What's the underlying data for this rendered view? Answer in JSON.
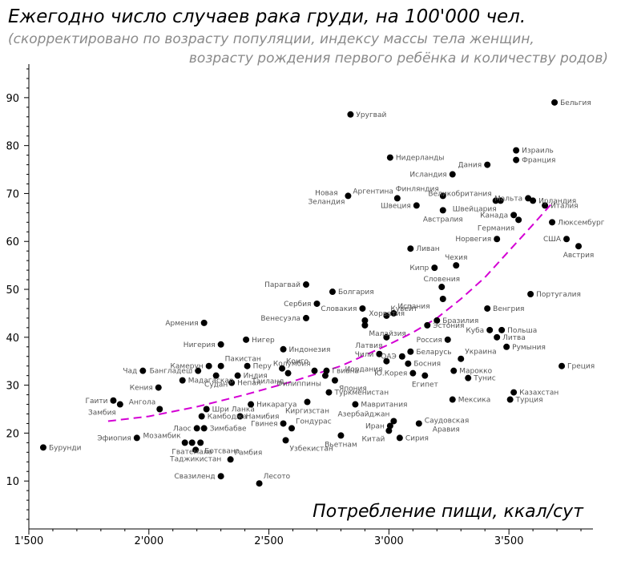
{
  "chart_data": {
    "type": "scatter",
    "title": "Ежегодно число случаев рака груди, на 100'000 чел.",
    "subtitle_line1": "(скорректировано по возрасту популяции, индексу массы тела женщин,",
    "subtitle_line2": "возрасту рождения первого ребёнка и количеству родов)",
    "xlabel": "Потребление пищи, ккал/сут",
    "ylabel": "",
    "xlim": [
      1500,
      3850
    ],
    "ylim": [
      0,
      97
    ],
    "x_ticks": [
      1500,
      2000,
      2500,
      3000,
      3500
    ],
    "x_tick_labels": [
      "1'500",
      "2'000",
      "2'500",
      "3'000",
      "3'500"
    ],
    "y_ticks": [
      10,
      20,
      30,
      40,
      50,
      60,
      70,
      80,
      90
    ],
    "y_tick_labels": [
      "10",
      "20",
      "30",
      "40",
      "50",
      "60",
      "70",
      "80",
      "90"
    ],
    "grid": false,
    "colors": {
      "points": "#000000",
      "labels": "#555555",
      "trend": "#d400d4"
    },
    "trend_line": {
      "style": "dashed",
      "x": [
        1830,
        2000,
        2200,
        2400,
        2600,
        2800,
        3000,
        3100,
        3200,
        3300,
        3400,
        3500,
        3600,
        3680
      ],
      "y": [
        22.5,
        23.5,
        25.5,
        28.0,
        30.8,
        34.0,
        38.5,
        41.0,
        44.0,
        48.0,
        52.5,
        58.0,
        63.5,
        68.0
      ]
    },
    "points": [
      {
        "x": 1560,
        "y": 17.0,
        "label": "Бурунди",
        "anchor": "right"
      },
      {
        "x": 1950,
        "y": 19.0,
        "label": "Эфиопия",
        "anchor": "left"
      },
      {
        "x": 1852,
        "y": 26.8,
        "label": "Гаити",
        "anchor": "left"
      },
      {
        "x": 1880,
        "y": 26.0,
        "label": "Замбия",
        "anchor": "below-left"
      },
      {
        "x": 1975,
        "y": 33.0,
        "label": "Чад",
        "anchor": "left"
      },
      {
        "x": 2040,
        "y": 29.5,
        "label": "Кения",
        "anchor": "left"
      },
      {
        "x": 2045,
        "y": 25.0,
        "label": "Ангола",
        "anchor": "above-left"
      },
      {
        "x": 2140,
        "y": 31.0,
        "label": "Мадагаскар",
        "anchor": "right"
      },
      {
        "x": 2205,
        "y": 33.0,
        "label": "Бангладеш",
        "anchor": "left"
      },
      {
        "x": 2250,
        "y": 34.0,
        "label": "Камерун",
        "anchor": "left"
      },
      {
        "x": 2300,
        "y": 34.0,
        "label": "Пакистан",
        "anchor": "above-right"
      },
      {
        "x": 2280,
        "y": 32.0,
        "label": "Судан",
        "anchor": "below"
      },
      {
        "x": 2345,
        "y": 30.5,
        "label": "Непал",
        "anchor": "right"
      },
      {
        "x": 2370,
        "y": 32.0,
        "label": "Индия",
        "anchor": "right"
      },
      {
        "x": 2410,
        "y": 34.0,
        "label": "Перу",
        "anchor": "right"
      },
      {
        "x": 2230,
        "y": 43.0,
        "label": "Армения",
        "anchor": "left"
      },
      {
        "x": 2300,
        "y": 38.5,
        "label": "Нигерия",
        "anchor": "left"
      },
      {
        "x": 2405,
        "y": 39.5,
        "label": "Нигер",
        "anchor": "right"
      },
      {
        "x": 2240,
        "y": 25.0,
        "label": "Шри Ланка",
        "anchor": "right"
      },
      {
        "x": 2220,
        "y": 23.5,
        "label": "Камбоджа",
        "anchor": "right"
      },
      {
        "x": 2200,
        "y": 21.0,
        "label": "Лаос",
        "anchor": "left"
      },
      {
        "x": 2230,
        "y": 21.0,
        "label": "Зимбабве",
        "anchor": "right"
      },
      {
        "x": 2150,
        "y": 18.0,
        "label": "Мозамбик",
        "anchor": "above-left"
      },
      {
        "x": 2180,
        "y": 18.0,
        "label": "Гватемала",
        "anchor": "below"
      },
      {
        "x": 2215,
        "y": 18.0,
        "label": "Ботсвана",
        "anchor": "below-right"
      },
      {
        "x": 2195,
        "y": 16.5,
        "label": "Таджикистан",
        "anchor": "below"
      },
      {
        "x": 2300,
        "y": 11.0,
        "label": "Свазиленд",
        "anchor": "left"
      },
      {
        "x": 2340,
        "y": 14.5,
        "label": "Гамбия",
        "anchor": "above-right"
      },
      {
        "x": 2460,
        "y": 9.5,
        "label": "Лесото",
        "anchor": "above-right"
      },
      {
        "x": 2380,
        "y": 23.5,
        "label": "Намибия",
        "anchor": "right"
      },
      {
        "x": 2425,
        "y": 26.0,
        "label": "Никарагуа",
        "anchor": "right"
      },
      {
        "x": 2560,
        "y": 22.0,
        "label": "Гвинея",
        "anchor": "left"
      },
      {
        "x": 2595,
        "y": 21.0,
        "label": "Гондурас",
        "anchor": "above-right"
      },
      {
        "x": 2570,
        "y": 18.5,
        "label": "Узбекистан",
        "anchor": "below-right"
      },
      {
        "x": 2560,
        "y": 37.5,
        "label": "Индонезия",
        "anchor": "right"
      },
      {
        "x": 2555,
        "y": 33.5,
        "label": "Конго",
        "anchor": "above-right"
      },
      {
        "x": 2580,
        "y": 32.5,
        "label": "Таиланд",
        "anchor": "below-left"
      },
      {
        "x": 2690,
        "y": 33.0,
        "label": "Колумбия",
        "anchor": "above-left"
      },
      {
        "x": 2740,
        "y": 33.0,
        "label": "Гвиана",
        "anchor": "right"
      },
      {
        "x": 2735,
        "y": 32.0,
        "label": "Филиппины",
        "anchor": "below-left"
      },
      {
        "x": 2775,
        "y": 31.0,
        "label": "Япония",
        "anchor": "below-right"
      },
      {
        "x": 2750,
        "y": 28.5,
        "label": "Туркменистан",
        "anchor": "right"
      },
      {
        "x": 2860,
        "y": 26.0,
        "label": "Мавритания",
        "anchor": "right"
      },
      {
        "x": 2660,
        "y": 26.5,
        "label": "Киргизстан",
        "anchor": "below"
      },
      {
        "x": 2800,
        "y": 19.5,
        "label": "Вьетнам",
        "anchor": "below"
      },
      {
        "x": 2655,
        "y": 51.0,
        "label": "Парагвай",
        "anchor": "left"
      },
      {
        "x": 2700,
        "y": 47.0,
        "label": "Сербия",
        "anchor": "left"
      },
      {
        "x": 2765,
        "y": 49.5,
        "label": "Болгария",
        "anchor": "right"
      },
      {
        "x": 2655,
        "y": 44.0,
        "label": "Венесуэла",
        "anchor": "left"
      },
      {
        "x": 2890,
        "y": 46.0,
        "label": "Словакия",
        "anchor": "left"
      },
      {
        "x": 2900,
        "y": 43.5,
        "label": "Хорватия",
        "anchor": "above-right"
      },
      {
        "x": 2900,
        "y": 42.5,
        "label": "Малайзия",
        "anchor": "below-right"
      },
      {
        "x": 2990,
        "y": 44.5,
        "label": "Кувейт",
        "anchor": "above-right"
      },
      {
        "x": 3020,
        "y": 45.0,
        "label": "Испания",
        "anchor": "above-right"
      },
      {
        "x": 2990,
        "y": 40.0,
        "label": "Латвия",
        "anchor": "below-left"
      },
      {
        "x": 2960,
        "y": 36.5,
        "label": "Чили",
        "anchor": "left"
      },
      {
        "x": 2990,
        "y": 35.0,
        "label": "Иордания",
        "anchor": "below-left"
      },
      {
        "x": 3055,
        "y": 36.0,
        "label": "ОАЭ",
        "anchor": "left"
      },
      {
        "x": 3090,
        "y": 37.0,
        "label": "Беларусь",
        "anchor": "right"
      },
      {
        "x": 3080,
        "y": 34.5,
        "label": "Босния",
        "anchor": "right"
      },
      {
        "x": 3100,
        "y": 32.5,
        "label": "Ю.Корея",
        "anchor": "left"
      },
      {
        "x": 3150,
        "y": 32.0,
        "label": "Египет",
        "anchor": "below"
      },
      {
        "x": 3160,
        "y": 42.5,
        "label": "Эстония",
        "anchor": "right"
      },
      {
        "x": 3200,
        "y": 43.5,
        "label": "Бразилия",
        "anchor": "right"
      },
      {
        "x": 3245,
        "y": 39.5,
        "label": "Россия",
        "anchor": "left"
      },
      {
        "x": 2840,
        "y": 86.5,
        "label": "Уругвай",
        "anchor": "right"
      },
      {
        "x": 3005,
        "y": 77.5,
        "label": "Нидерланды",
        "anchor": "right"
      },
      {
        "x": 3265,
        "y": 74.0,
        "label": "Исландия",
        "anchor": "left"
      },
      {
        "x": 3410,
        "y": 76.0,
        "label": "Дания",
        "anchor": "left"
      },
      {
        "x": 2830,
        "y": 69.5,
        "label": "Новая Зеландия",
        "anchor": "left"
      },
      {
        "x": 3035,
        "y": 69.0,
        "label": "Аргентина",
        "anchor": "above-left"
      },
      {
        "x": 3115,
        "y": 67.5,
        "label": "Швеция",
        "anchor": "left"
      },
      {
        "x": 3225,
        "y": 69.5,
        "label": "Финляндия",
        "anchor": "above-left"
      },
      {
        "x": 3225,
        "y": 66.5,
        "label": "Австралия",
        "anchor": "below"
      },
      {
        "x": 3445,
        "y": 68.5,
        "label": "Великобритания",
        "anchor": "above-left"
      },
      {
        "x": 3465,
        "y": 68.5,
        "label": "Швейцария",
        "anchor": "below-left"
      },
      {
        "x": 3530,
        "y": 77.0,
        "label": "Франция",
        "anchor": "right"
      },
      {
        "x": 3530,
        "y": 79.0,
        "label": "Израиль",
        "anchor": "right"
      },
      {
        "x": 3580,
        "y": 69.0,
        "label": "Мальта",
        "anchor": "left"
      },
      {
        "x": 3600,
        "y": 68.5,
        "label": "Ирландия",
        "anchor": "right"
      },
      {
        "x": 3650,
        "y": 67.5,
        "label": "Италия",
        "anchor": "right"
      },
      {
        "x": 3520,
        "y": 65.5,
        "label": "Канада",
        "anchor": "left"
      },
      {
        "x": 3540,
        "y": 64.5,
        "label": "Германия",
        "anchor": "below-left"
      },
      {
        "x": 3680,
        "y": 64.0,
        "label": "Люксембург",
        "anchor": "right"
      },
      {
        "x": 3450,
        "y": 60.5,
        "label": "Норвегия",
        "anchor": "left"
      },
      {
        "x": 3690,
        "y": 89.0,
        "label": "Бельгия",
        "anchor": "right"
      },
      {
        "x": 3740,
        "y": 60.5,
        "label": "США",
        "anchor": "left"
      },
      {
        "x": 3790,
        "y": 59.0,
        "label": "Австрия",
        "anchor": "below"
      },
      {
        "x": 3090,
        "y": 58.5,
        "label": "Ливан",
        "anchor": "right"
      },
      {
        "x": 3190,
        "y": 54.5,
        "label": "Кипр",
        "anchor": "left"
      },
      {
        "x": 3280,
        "y": 55.0,
        "label": "Чехия",
        "anchor": "above"
      },
      {
        "x": 3220,
        "y": 50.5,
        "label": "Словения",
        "anchor": "above"
      },
      {
        "x": 3225,
        "y": 48.0,
        "label": "Эстония_hidden",
        "anchor": "none"
      },
      {
        "x": 3410,
        "y": 46.0,
        "label": "Венгрия",
        "anchor": "right"
      },
      {
        "x": 3590,
        "y": 49.0,
        "label": "Португалия",
        "anchor": "right"
      },
      {
        "x": 3420,
        "y": 41.5,
        "label": "Куба",
        "anchor": "left"
      },
      {
        "x": 3470,
        "y": 41.5,
        "label": "Польша",
        "anchor": "right"
      },
      {
        "x": 3450,
        "y": 40.0,
        "label": "Литва",
        "anchor": "right"
      },
      {
        "x": 3490,
        "y": 38.0,
        "label": "Румыния",
        "anchor": "right"
      },
      {
        "x": 3300,
        "y": 35.5,
        "label": "Украина",
        "anchor": "above-right"
      },
      {
        "x": 3270,
        "y": 33.0,
        "label": "Марокко",
        "anchor": "right"
      },
      {
        "x": 3330,
        "y": 31.5,
        "label": "Тунис",
        "anchor": "right"
      },
      {
        "x": 3720,
        "y": 34.0,
        "label": "Греция",
        "anchor": "right"
      },
      {
        "x": 3520,
        "y": 28.5,
        "label": "Казахстан",
        "anchor": "right"
      },
      {
        "x": 3505,
        "y": 27.0,
        "label": "Турция",
        "anchor": "right"
      },
      {
        "x": 3265,
        "y": 27.0,
        "label": "Мексика",
        "anchor": "right"
      },
      {
        "x": 3020,
        "y": 22.5,
        "label": "Азербайджан",
        "anchor": "above-left"
      },
      {
        "x": 3005,
        "y": 21.5,
        "label": "Иран",
        "anchor": "left"
      },
      {
        "x": 3000,
        "y": 20.5,
        "label": "Китай",
        "anchor": "below-left"
      },
      {
        "x": 3045,
        "y": 19.0,
        "label": "Сирия",
        "anchor": "right"
      },
      {
        "x": 3125,
        "y": 22.0,
        "label": "Саудовская Аравия",
        "anchor": "right"
      }
    ]
  }
}
